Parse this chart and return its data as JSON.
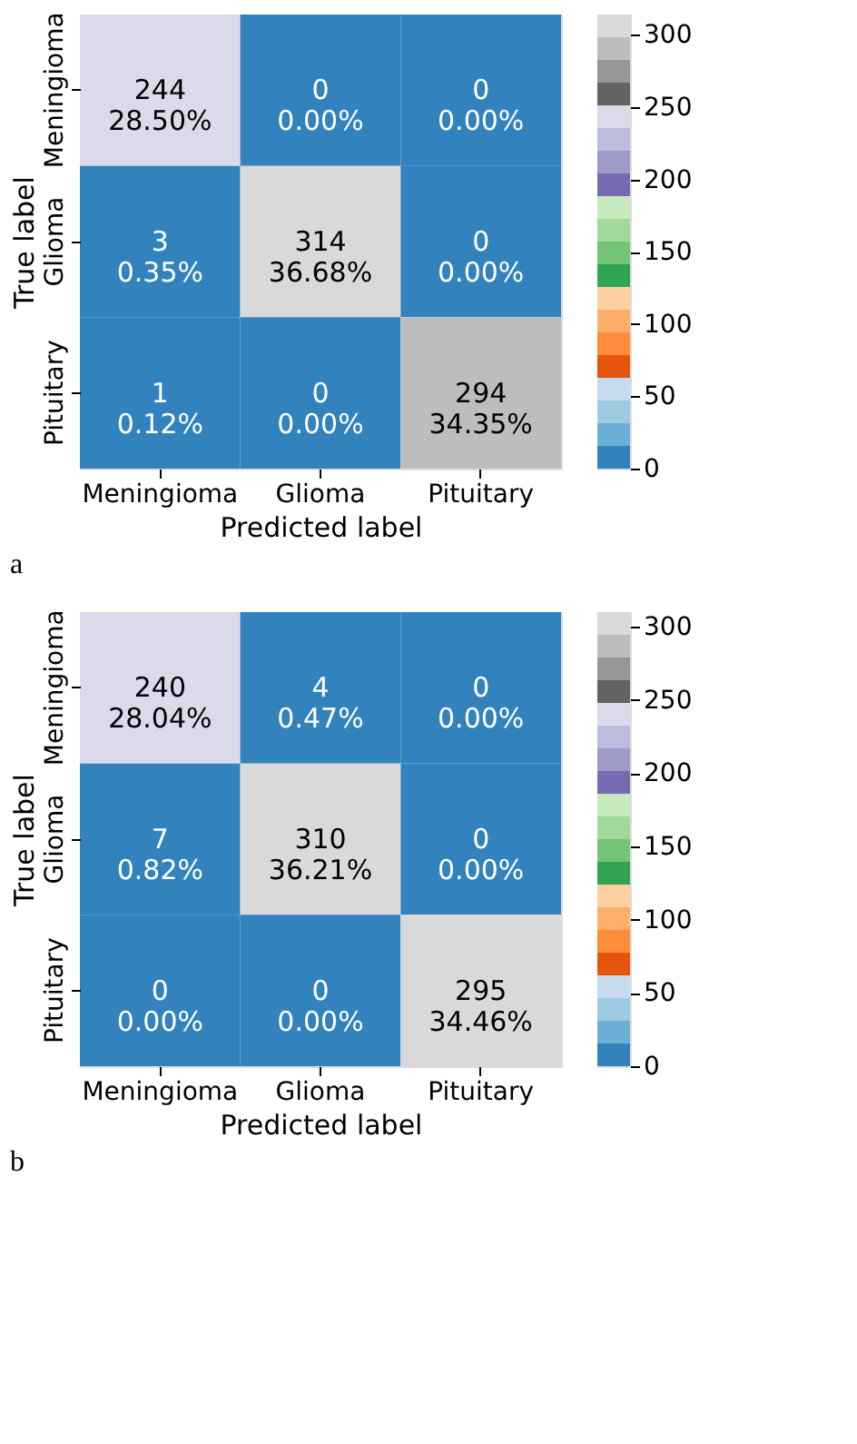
{
  "chart_data": [
    {
      "type": "heatmap",
      "categories": [
        "Meningioma",
        "Glioma",
        "Pituitary"
      ],
      "y_categories": [
        "Meningioma",
        "Glioma",
        "Pituitary"
      ],
      "xlabel": "Predicted label",
      "ylabel": "True label",
      "cells": [
        [
          244,
          0,
          0
        ],
        [
          3,
          314,
          0
        ],
        [
          1,
          0,
          294
        ]
      ],
      "cell_labels": [
        [
          "244\n28.50%",
          "0\n0.00%",
          "0\n0.00%"
        ],
        [
          "3\n0.35%",
          "314\n36.68%",
          "0\n0.00%"
        ],
        [
          "1\n0.12%",
          "0\n0.00%",
          "294\n34.35%"
        ]
      ],
      "clim": [
        0,
        314
      ],
      "cticks": [
        0,
        50,
        100,
        150,
        200,
        250,
        300
      ],
      "annotations": [
        "a"
      ]
    },
    {
      "type": "heatmap",
      "categories": [
        "Meningioma",
        "Glioma",
        "Pituitary"
      ],
      "y_categories": [
        "Meningioma",
        "Glioma",
        "Pituitary"
      ],
      "xlabel": "Predicted label",
      "ylabel": "True label",
      "cells": [
        [
          240,
          4,
          0
        ],
        [
          7,
          310,
          0
        ],
        [
          0,
          0,
          295
        ]
      ],
      "cell_labels": [
        [
          "240\n28.04%",
          "4\n0.47%",
          "0\n0.00%"
        ],
        [
          "7\n0.82%",
          "310\n36.21%",
          "0\n0.00%"
        ],
        [
          "0\n0.00%",
          "0\n0.00%",
          "295\n34.46%"
        ]
      ],
      "clim": [
        0,
        310
      ],
      "cticks": [
        0,
        50,
        100,
        150,
        200,
        250,
        300
      ],
      "annotations": [
        "b"
      ]
    }
  ]
}
